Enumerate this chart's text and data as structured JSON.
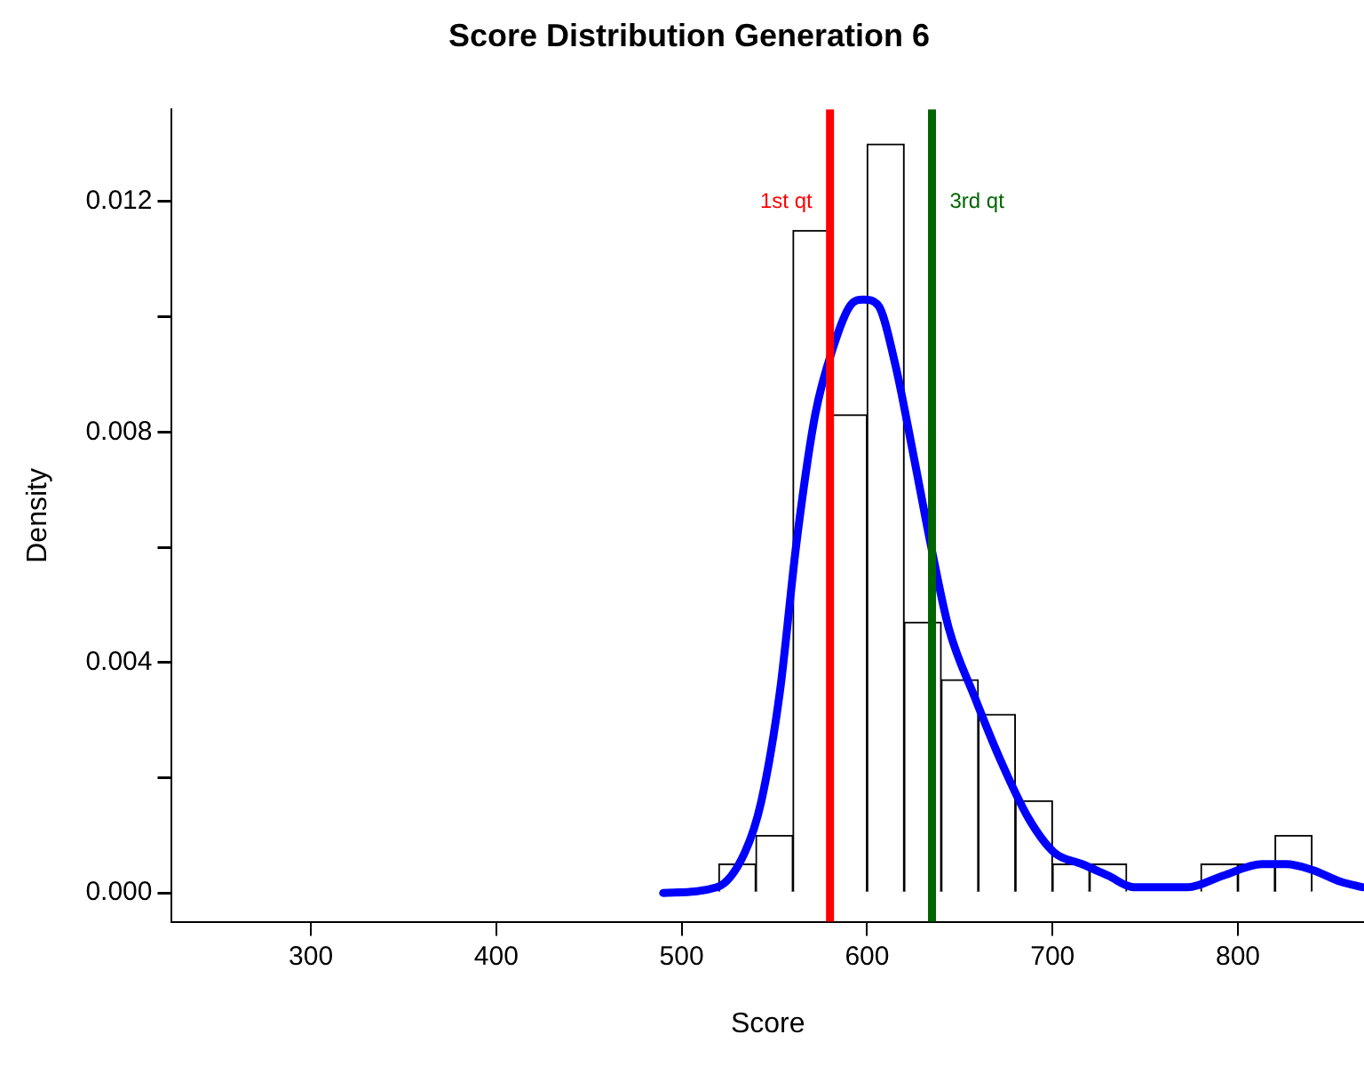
{
  "chart_data": {
    "type": "histogram",
    "title": "Score Distribution Generation 6",
    "xlabel": "Score",
    "ylabel": "Density",
    "color": "#ffffff",
    "bins": [
      520,
      540,
      560,
      580,
      600,
      620,
      640,
      660,
      680,
      700,
      720,
      740,
      760,
      780,
      800,
      820,
      840
    ],
    "values": [
      0.0005,
      0.001,
      0.0115,
      0.0083,
      0.013,
      0.0047,
      0.0037,
      0.0031,
      0.0016,
      0.0005,
      0.0005,
      0,
      0,
      0.0005,
      0.0005,
      0.001
    ],
    "series": [
      {
        "type": "line",
        "color": "#0000ff",
        "x": [
          490,
          519,
          534,
          543,
          553,
          562,
          572,
          582,
          591,
          598,
          606,
          615,
          625,
          634,
          644,
          658,
          672,
          687,
          701,
          716,
          730,
          744,
          759,
          773,
          792,
          813,
          826,
          840,
          855,
          867
        ],
        "values": [
          0,
          0.0001,
          0.0007,
          0.0016,
          0.0035,
          0.0061,
          0.0083,
          0.0095,
          0.0102,
          0.0103,
          0.0102,
          0.0092,
          0.0076,
          0.0061,
          0.0046,
          0.0034,
          0.0023,
          0.0013,
          0.0007,
          0.0005,
          0.0003,
          0.0001,
          0.0001,
          0.0001,
          0.0003,
          0.0005,
          0.0005,
          0.0004,
          0.0002,
          0.0001
        ]
      }
    ],
    "ref_lines": [
      {
        "axis": "x",
        "value": 580,
        "label": "1st qt",
        "color": "#ff0000"
      },
      {
        "axis": "x",
        "value": 635,
        "label": "3rd qt",
        "color": "#006400"
      }
    ],
    "xlim": [
      225,
      868
    ],
    "ylim": [
      -0.0005,
      0.0136
    ],
    "xticks": [
      300,
      400,
      500,
      600,
      700,
      800
    ],
    "yticks": [
      {
        "value": 0,
        "label": "0.000"
      },
      {
        "value": 0.002,
        "label": null
      },
      {
        "value": 0.004,
        "label": "0.004"
      },
      {
        "value": 0.006,
        "label": null
      },
      {
        "value": 0.008,
        "label": "0.008"
      },
      {
        "value": 0.01,
        "label": null
      },
      {
        "value": 0.012,
        "label": "0.012"
      }
    ],
    "grid": false,
    "marker": "none"
  }
}
